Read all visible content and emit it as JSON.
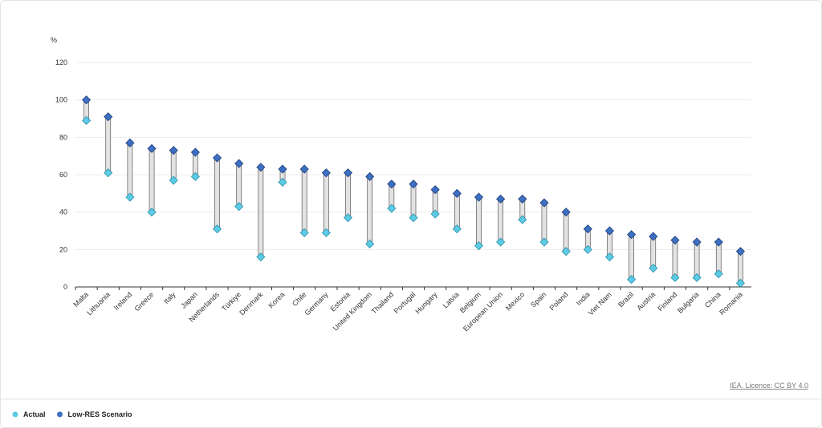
{
  "chart_data": {
    "type": "dumbbell",
    "y_label": "%",
    "categories": [
      "Malta",
      "Lithuania",
      "Ireland",
      "Greece",
      "Italy",
      "Japan",
      "Netherlands",
      "Türkiye",
      "Denmark",
      "Korea",
      "Chile",
      "Germany",
      "Estonia",
      "United Kingdom",
      "Thailand",
      "Portugal",
      "Hungary",
      "Latvia",
      "Belgium",
      "European Union",
      "Mexico",
      "Spain",
      "Poland",
      "India",
      "Viet Nam",
      "Brazil",
      "Austria",
      "Finland",
      "Bulgaria",
      "China",
      "Romania"
    ],
    "series": [
      {
        "name": "Actual",
        "color": "#5ccbe6",
        "values": [
          89,
          61,
          48,
          40,
          57,
          59,
          31,
          43,
          16,
          56,
          29,
          29,
          37,
          23,
          42,
          37,
          39,
          31,
          22,
          24,
          36,
          24,
          19,
          20,
          16,
          4,
          10,
          5,
          5,
          7,
          2
        ]
      },
      {
        "name": "Low-RES Scenario",
        "color": "#3d6fc2",
        "values": [
          100,
          91,
          77,
          74,
          73,
          72,
          69,
          66,
          64,
          63,
          63,
          61,
          61,
          59,
          55,
          55,
          52,
          50,
          48,
          47,
          47,
          45,
          40,
          31,
          30,
          28,
          27,
          25,
          24,
          24,
          19
        ]
      }
    ],
    "ylim": [
      0,
      120
    ],
    "yticks": [
      0,
      20,
      40,
      60,
      80,
      100,
      120
    ],
    "grid": true,
    "source": "IEA. Licence: CC BY 4.0"
  }
}
